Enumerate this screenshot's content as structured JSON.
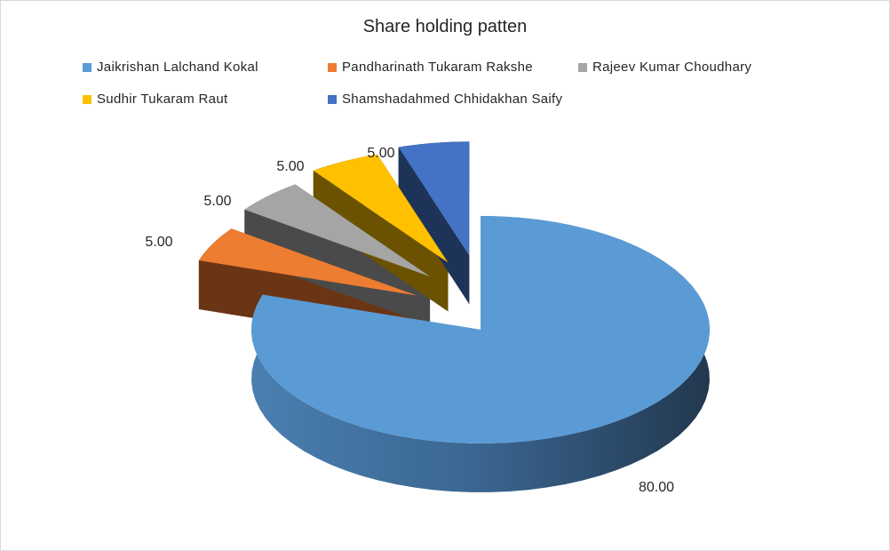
{
  "chart_data": {
    "type": "pie",
    "title": "Share holding patten",
    "legend_position": "top",
    "categories": [
      "Jaikrishan Lalchand Kokal",
      "Pandharinath Tukaram Rakshe",
      "Rajeev Kumar Choudhary",
      "Sudhir Tukaram Raut",
      "Shamshadahmed Chhidakhan Saify"
    ],
    "values": [
      80,
      5,
      5,
      5,
      5
    ],
    "data_labels": [
      "80.00",
      "5.00",
      "5.00",
      "5.00",
      "5.00"
    ],
    "colors": [
      "#5b9bd5",
      "#ed7d31",
      "#a5a5a5",
      "#ffc000",
      "#4472c4"
    ],
    "side_colors": [
      "#3d6a94",
      "#6a3515",
      "#4a4a4a",
      "#6b5200",
      "#1e3358"
    ],
    "style": "3d exploded pie"
  }
}
